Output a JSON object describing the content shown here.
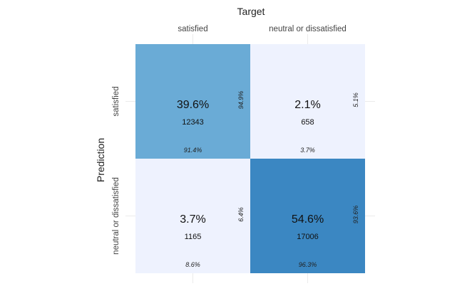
{
  "chart_data": {
    "type": "heatmap",
    "title": "",
    "xlabel": "Target",
    "ylabel": "Prediction",
    "x_categories": [
      "satisfied",
      "neutral or dissatisfied"
    ],
    "y_categories": [
      "satisfied",
      "neutral or dissatisfied"
    ],
    "x_axis_position": "top",
    "grid": true,
    "legend": "none",
    "cells": [
      {
        "prediction": "satisfied",
        "target": "satisfied",
        "percent": "39.6%",
        "count": 12343,
        "count_label": "12343",
        "col_pct": "91.4%",
        "row_pct": "94.9%",
        "color": "#6aabd6"
      },
      {
        "prediction": "satisfied",
        "target": "neutral or dissatisfied",
        "percent": "2.1%",
        "count": 658,
        "count_label": "658",
        "col_pct": "3.7%",
        "row_pct": "5.1%",
        "color": "#eef2fe"
      },
      {
        "prediction": "neutral or dissatisfied",
        "target": "satisfied",
        "percent": "3.7%",
        "count": 1165,
        "count_label": "1165",
        "col_pct": "8.6%",
        "row_pct": "6.4%",
        "color": "#eef2fe"
      },
      {
        "prediction": "neutral or dissatisfied",
        "target": "neutral or dissatisfied",
        "percent": "54.6%",
        "count": 17006,
        "count_label": "17006",
        "col_pct": "96.3%",
        "row_pct": "93.6%",
        "color": "#3b87c2"
      }
    ]
  }
}
